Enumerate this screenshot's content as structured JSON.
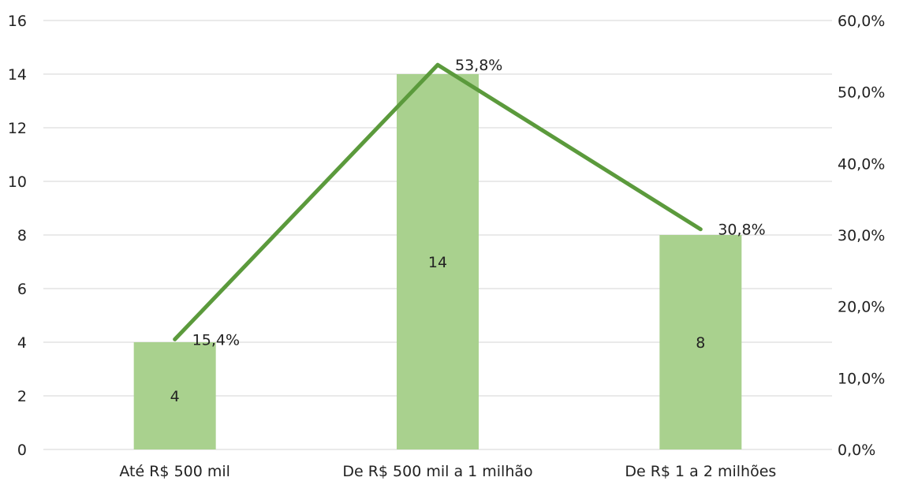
{
  "chart_data": {
    "type": "bar",
    "title": "",
    "xlabel": "",
    "ylabel": "",
    "categories": [
      "Até R$ 500 mil",
      "De R$ 500 mil a 1 milhão",
      "De R$ 1 a 2 milhões"
    ],
    "series": [
      {
        "type": "bar",
        "axis": "left",
        "values": [
          4,
          14,
          8
        ],
        "value_labels": [
          "4",
          "14",
          "8"
        ],
        "color": "#a9d18e"
      },
      {
        "type": "line",
        "axis": "right",
        "values": [
          15.4,
          53.8,
          30.8
        ],
        "value_labels": [
          "15,4%",
          "53,8%",
          "30,8%"
        ],
        "color": "#5b9a3c"
      }
    ],
    "ylim": [
      0,
      16
    ],
    "y_ticks": [
      0,
      2,
      4,
      6,
      8,
      10,
      12,
      14,
      16
    ],
    "y_tick_labels": [
      "0",
      "2",
      "4",
      "6",
      "8",
      "10",
      "12",
      "14",
      "16"
    ],
    "y2lim": [
      0,
      60
    ],
    "y2_ticks": [
      0,
      10,
      20,
      30,
      40,
      50,
      60
    ],
    "y2_tick_labels": [
      "0,0%",
      "10,0%",
      "20,0%",
      "30,0%",
      "40,0%",
      "50,0%",
      "60,0%"
    ],
    "grid": true,
    "legend": "none"
  }
}
